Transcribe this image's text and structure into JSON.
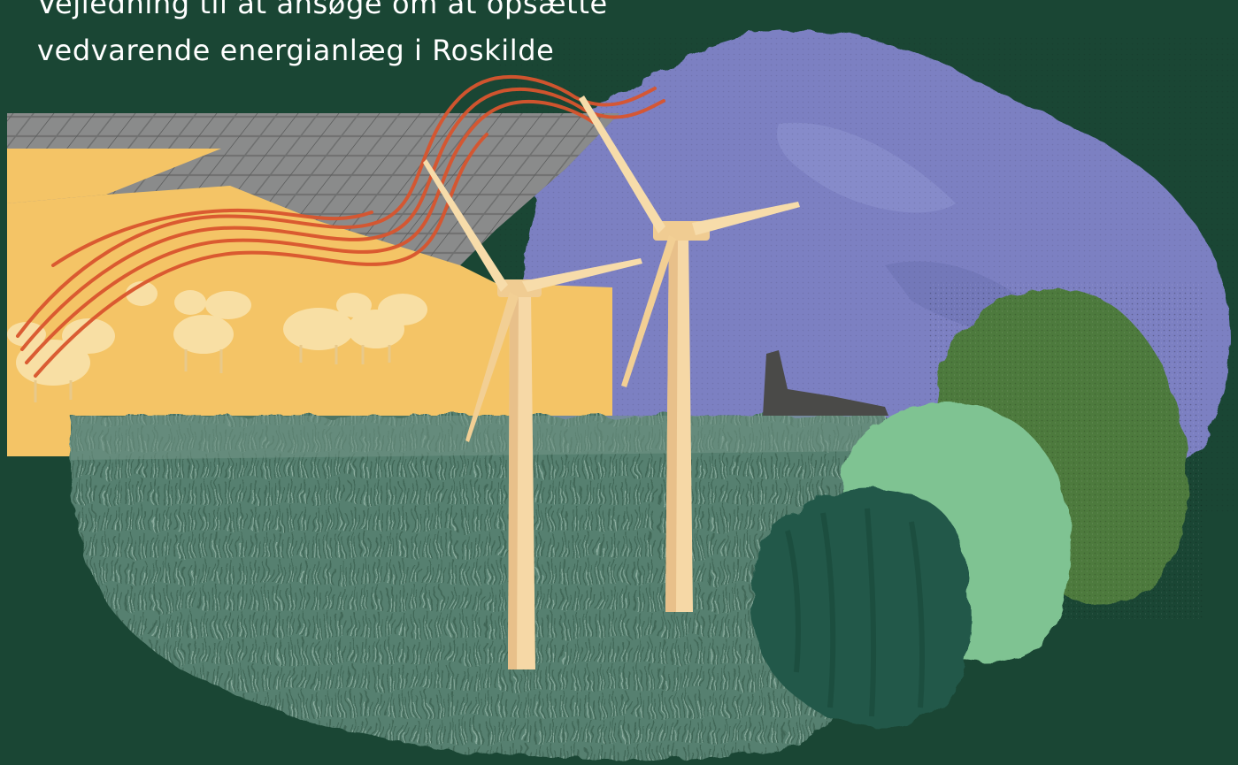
{
  "title": {
    "line1": "Vejledning til at ansøge om at opsætte",
    "line2": "vedvarende energianlæg i Roskilde"
  },
  "colors": {
    "background": "#1a4634",
    "field": "#f4c466",
    "sky": "#7b80c2",
    "grass": "#4f7a6a",
    "scribble": "#d9552e",
    "turbine": "#f6d8a6",
    "bush_light": "#7fc392",
    "bush_olive": "#4d7a3e",
    "bush_dark": "#23594a",
    "building": "#4a4a48"
  },
  "illustration": {
    "elements": [
      "solar-panels",
      "sheep",
      "wind-turbines",
      "sky-cloud",
      "grass-meadow",
      "bushes",
      "building"
    ]
  }
}
